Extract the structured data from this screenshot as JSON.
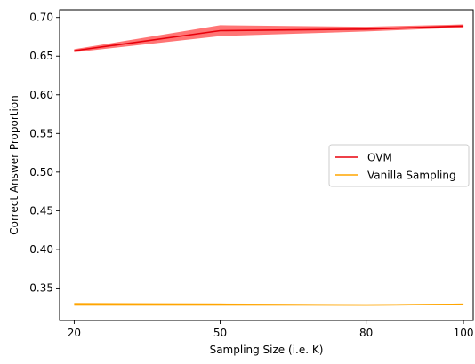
{
  "chart_data": {
    "type": "line",
    "title": "",
    "xlabel": "Sampling Size (i.e. K)",
    "ylabel": "Correct Answer Proportion",
    "x": [
      20,
      50,
      80,
      100
    ],
    "xlim": [
      17,
      102
    ],
    "ylim": [
      0.308,
      0.71
    ],
    "xticks": [
      20,
      50,
      80,
      100
    ],
    "yticks": [
      0.35,
      0.4,
      0.45,
      0.5,
      0.55,
      0.6,
      0.65,
      0.7
    ],
    "ytick_labels": [
      "0.35",
      "0.40",
      "0.45",
      "0.50",
      "0.55",
      "0.60",
      "0.65",
      "0.70"
    ],
    "grid": false,
    "legend_position": "center-right",
    "series": [
      {
        "name": "OVM",
        "color": "#e8000b",
        "band_color": "#ff6666",
        "values": [
          0.657,
          0.683,
          0.685,
          0.689
        ],
        "lower": [
          0.655,
          0.676,
          0.682,
          0.687
        ],
        "upper": [
          0.659,
          0.69,
          0.688,
          0.691
        ]
      },
      {
        "name": "Vanilla Sampling",
        "color": "#ffa500",
        "band_color": "#ffc04d",
        "values": [
          0.329,
          0.329,
          0.328,
          0.329
        ],
        "lower": [
          0.327,
          0.327,
          0.327,
          0.328
        ],
        "upper": [
          0.331,
          0.33,
          0.329,
          0.33
        ]
      }
    ]
  }
}
